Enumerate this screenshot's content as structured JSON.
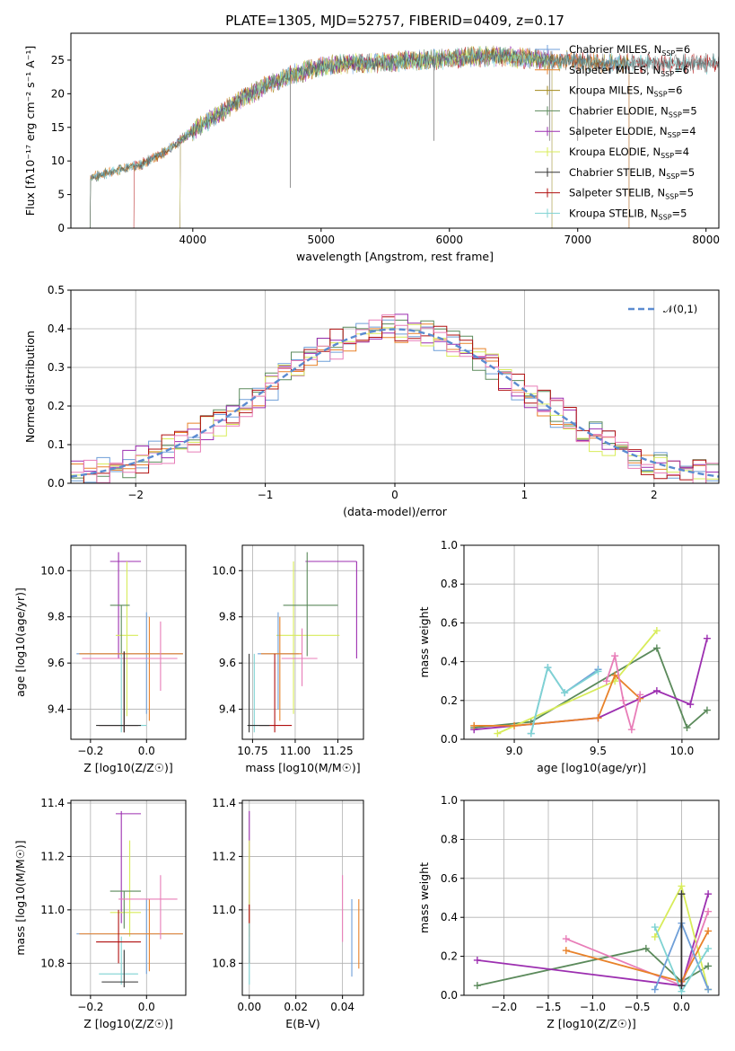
{
  "page_title": "PLATE=1305, MJD=52757, FIBERID=0409, z=0.17",
  "colors": {
    "Chabrier MILES": "#6f9fd8",
    "Salpeter MILES": "#e8822a",
    "Kroupa MILES": "#a38a1b",
    "Chabrier ELODIE": "#5b8a5b",
    "Salpeter ELODIE": "#9c2fb0",
    "Kroupa ELODIE": "#d8ec5a",
    "Chabrier STELIB": "#333333",
    "Salpeter STELIB": "#b01010",
    "Kroupa STELIB": "#7fd3d3",
    "gauss": "#5b8bd0",
    "pink": "#e87db8"
  },
  "chart_data": [
    {
      "id": "spectrum",
      "type": "line",
      "xlabel": "wavelength [Angstrom, rest frame]",
      "ylabel": "Flux [fλ10⁻¹⁷ erg cm⁻² s⁻¹ A⁻¹]",
      "xlim": [
        3050,
        8100
      ],
      "ylim": [
        0,
        29
      ],
      "xticks": [
        4000,
        5000,
        6000,
        7000,
        8000
      ],
      "yticks": [
        0,
        5,
        10,
        15,
        20,
        25
      ],
      "legend_position": "right",
      "legend": [
        {
          "base": "Chabrier MILES, N",
          "sub": "SSP",
          "suffix": "=6"
        },
        {
          "base": "Salpeter MILES, N",
          "sub": "SSP",
          "suffix": "=6"
        },
        {
          "base": "Kroupa MILES, N",
          "sub": "SSP",
          "suffix": "=6"
        },
        {
          "base": "Chabrier ELODIE, N",
          "sub": "SSP",
          "suffix": "=5"
        },
        {
          "base": "Salpeter ELODIE, N",
          "sub": "SSP",
          "suffix": "=4"
        },
        {
          "base": "Kroupa ELODIE, N",
          "sub": "SSP",
          "suffix": "=4"
        },
        {
          "base": "Chabrier STELIB, N",
          "sub": "SSP",
          "suffix": "=5"
        },
        {
          "base": "Salpeter STELIB, N",
          "sub": "SSP",
          "suffix": "=5"
        },
        {
          "base": "Kroupa STELIB, N",
          "sub": "SSP",
          "suffix": "=5"
        }
      ],
      "continuum_x": [
        3200,
        3400,
        3600,
        3800,
        4000,
        4200,
        4400,
        4600,
        4800,
        5000,
        5200,
        5400,
        5600,
        5800,
        6000,
        6200,
        6400,
        6600,
        6800,
        7000,
        7200,
        7400
      ],
      "continuum_y": [
        7.5,
        8.5,
        9.5,
        11.5,
        14.5,
        17,
        19.5,
        21.5,
        23,
        24,
        24.5,
        24.5,
        24.8,
        25,
        25.2,
        25.5,
        25.6,
        25.3,
        25,
        24.8,
        24.5,
        24.5
      ]
    },
    {
      "id": "residuals",
      "type": "step",
      "xlabel": "(data-model)/error",
      "ylabel": "Normed distribution",
      "xlim": [
        -2.5,
        2.5
      ],
      "ylim": [
        0,
        0.5
      ],
      "xticks": [
        -2,
        -1,
        0,
        1,
        2
      ],
      "yticks": [
        0.0,
        0.1,
        0.2,
        0.3,
        0.4,
        0.5
      ],
      "gaussian_label": "𝒩(0,1)",
      "legend_position": "upper right"
    },
    {
      "id": "age_vs_Z",
      "type": "errorbar",
      "xlabel": "Z [log10(Z/Z☉)]",
      "ylabel": "age  [log10(age/yr)]",
      "xlim": [
        -0.27,
        0.14
      ],
      "ylim": [
        9.27,
        10.11
      ],
      "xticks": [
        -0.2,
        0.0
      ],
      "yticks": [
        9.4,
        9.6,
        9.8,
        10.0
      ],
      "points": [
        {
          "s": "Salpeter ELODIE",
          "x": -0.1,
          "y": 10.04,
          "xe": [
            -0.13,
            -0.02
          ],
          "ye": [
            9.62,
            10.08
          ]
        },
        {
          "s": "Kroupa ELODIE",
          "x": -0.07,
          "y": 9.72,
          "xe": [
            -0.11,
            -0.03
          ],
          "ye": [
            9.37,
            10.04
          ]
        },
        {
          "s": "Chabrier ELODIE",
          "x": -0.09,
          "y": 9.85,
          "xe": [
            -0.13,
            -0.06
          ],
          "ye": [
            9.63,
            9.85
          ]
        },
        {
          "s": "Chabrier MILES",
          "x": 0.0,
          "y": 9.64,
          "xe": [
            -0.25,
            0.13
          ],
          "ye": [
            9.38,
            9.82
          ]
        },
        {
          "s": "Salpeter MILES",
          "x": 0.01,
          "y": 9.64,
          "xe": [
            -0.24,
            0.13
          ],
          "ye": [
            9.35,
            9.8
          ]
        },
        {
          "s": "pink",
          "x": 0.05,
          "y": 9.62,
          "xe": [
            -0.23,
            0.11
          ],
          "ye": [
            9.48,
            9.78
          ]
        },
        {
          "s": "Kroupa STELIB",
          "x": -0.09,
          "y": 9.33,
          "xe": [
            -0.17,
            0.0
          ],
          "ye": [
            9.3,
            9.64
          ]
        },
        {
          "s": "Salpeter STELIB",
          "x": -0.08,
          "y": 9.33,
          "xe": [
            -0.17,
            -0.03
          ],
          "ye": [
            9.3,
            9.65
          ]
        },
        {
          "s": "Chabrier STELIB",
          "x": -0.08,
          "y": 9.33,
          "xe": [
            -0.18,
            -0.02
          ],
          "ye": [
            9.3,
            9.65
          ]
        }
      ]
    },
    {
      "id": "age_vs_mass",
      "type": "errorbar",
      "xlabel": "mass [log10(M/M☉)]",
      "ylabel": "",
      "xlim": [
        10.69,
        11.4
      ],
      "ylim": [
        9.27,
        10.11
      ],
      "xticks": [
        10.75,
        11.0,
        11.25
      ],
      "yticks": [
        9.4,
        9.6,
        9.8,
        10.0
      ],
      "points": [
        {
          "s": "Salpeter ELODIE",
          "x": 11.36,
          "y": 10.04,
          "xe": [
            11.06,
            11.36
          ],
          "ye": [
            9.62,
            10.04
          ]
        },
        {
          "s": "Kroupa ELODIE",
          "x": 10.99,
          "y": 9.72,
          "xe": [
            10.89,
            11.26
          ],
          "ye": [
            9.38,
            10.04
          ]
        },
        {
          "s": "Chabrier ELODIE",
          "x": 11.07,
          "y": 9.85,
          "xe": [
            10.93,
            11.25
          ],
          "ye": [
            9.63,
            10.08
          ]
        },
        {
          "s": "Chabrier MILES",
          "x": 10.9,
          "y": 9.64,
          "xe": [
            10.78,
            11.02
          ],
          "ye": [
            9.4,
            9.82
          ]
        },
        {
          "s": "Salpeter MILES",
          "x": 10.91,
          "y": 9.64,
          "xe": [
            10.8,
            11.04
          ],
          "ye": [
            9.35,
            9.8
          ]
        },
        {
          "s": "pink",
          "x": 11.04,
          "y": 9.62,
          "xe": [
            10.92,
            11.13
          ],
          "ye": [
            9.5,
            9.75
          ]
        },
        {
          "s": "Kroupa STELIB",
          "x": 10.76,
          "y": 9.33,
          "xe": [
            10.73,
            10.88
          ],
          "ye": [
            9.3,
            9.64
          ]
        },
        {
          "s": "Salpeter STELIB",
          "x": 10.88,
          "y": 9.33,
          "xe": [
            10.79,
            10.98
          ],
          "ye": [
            9.3,
            9.64
          ]
        },
        {
          "s": "Chabrier STELIB",
          "x": 10.73,
          "y": 9.33,
          "xe": [
            10.72,
            10.85
          ],
          "ye": [
            9.3,
            9.64
          ]
        }
      ]
    },
    {
      "id": "mass_weight_vs_age",
      "type": "line",
      "xlabel": "age  [log10(age/yr)]",
      "ylabel": "mass weight",
      "xlim": [
        8.7,
        10.22
      ],
      "ylim": [
        0.0,
        1.0
      ],
      "xticks": [
        9.0,
        9.5,
        10.0
      ],
      "yticks": [
        0.0,
        0.2,
        0.4,
        0.6,
        0.8,
        1.0
      ],
      "series": [
        {
          "s": "Chabrier ELODIE",
          "x": [
            8.76,
            9.1,
            9.85,
            10.03,
            10.15
          ],
          "y": [
            0.06,
            0.09,
            0.47,
            0.06,
            0.15
          ]
        },
        {
          "s": "Salpeter ELODIE",
          "x": [
            8.76,
            9.5,
            9.85,
            10.05,
            10.15
          ],
          "y": [
            0.05,
            0.11,
            0.25,
            0.18,
            0.52
          ]
        },
        {
          "s": "Kroupa ELODIE",
          "x": [
            8.9,
            9.6,
            9.85
          ],
          "y": [
            0.03,
            0.3,
            0.56
          ]
        },
        {
          "s": "Salpeter MILES",
          "x": [
            8.76,
            9.0,
            9.5,
            9.6,
            9.75
          ],
          "y": [
            0.07,
            0.07,
            0.11,
            0.33,
            0.21
          ]
        },
        {
          "s": "Chabrier MILES",
          "x": [
            9.1,
            9.2,
            9.3,
            9.5
          ],
          "y": [
            0.03,
            0.37,
            0.24,
            0.36
          ]
        },
        {
          "s": "Kroupa STELIB",
          "x": [
            9.1,
            9.2,
            9.3,
            9.5
          ],
          "y": [
            0.03,
            0.37,
            0.24,
            0.35
          ]
        },
        {
          "s": "pink",
          "x": [
            9.55,
            9.6,
            9.65,
            9.7,
            9.75
          ],
          "y": [
            0.3,
            0.43,
            0.2,
            0.05,
            0.23
          ]
        }
      ]
    },
    {
      "id": "mass_vs_Z",
      "type": "errorbar",
      "xlabel": "Z [log10(Z/Z☉)]",
      "ylabel": "mass [log10(M/M☉)]",
      "xlim": [
        -0.27,
        0.14
      ],
      "ylim": [
        10.68,
        11.41
      ],
      "xticks": [
        -0.2,
        0.0
      ],
      "yticks": [
        10.8,
        11.0,
        11.2,
        11.4
      ],
      "points": [
        {
          "s": "Salpeter ELODIE",
          "x": -0.09,
          "y": 11.36,
          "xe": [
            -0.11,
            -0.02
          ],
          "ye": [
            10.95,
            11.37
          ]
        },
        {
          "s": "Kroupa ELODIE",
          "x": -0.06,
          "y": 10.99,
          "xe": [
            -0.13,
            -0.02
          ],
          "ye": [
            10.9,
            11.26
          ]
        },
        {
          "s": "Chabrier ELODIE",
          "x": -0.08,
          "y": 11.07,
          "xe": [
            -0.13,
            -0.02
          ],
          "ye": [
            10.93,
            11.07
          ]
        },
        {
          "s": "Chabrier MILES",
          "x": 0.0,
          "y": 10.91,
          "xe": [
            -0.25,
            0.13
          ],
          "ye": [
            10.76,
            11.04
          ]
        },
        {
          "s": "Salpeter MILES",
          "x": 0.01,
          "y": 10.91,
          "xe": [
            -0.24,
            0.13
          ],
          "ye": [
            10.77,
            11.04
          ]
        },
        {
          "s": "pink",
          "x": 0.05,
          "y": 11.04,
          "xe": [
            -0.1,
            0.11
          ],
          "ye": [
            10.89,
            11.13
          ]
        },
        {
          "s": "Kroupa STELIB",
          "x": -0.09,
          "y": 10.76,
          "xe": [
            -0.17,
            -0.03
          ],
          "ye": [
            10.72,
            10.9
          ]
        },
        {
          "s": "Salpeter STELIB",
          "x": -0.1,
          "y": 10.88,
          "xe": [
            -0.18,
            -0.02
          ],
          "ye": [
            10.8,
            11.0
          ]
        },
        {
          "s": "Chabrier STELIB",
          "x": -0.08,
          "y": 10.73,
          "xe": [
            -0.16,
            -0.03
          ],
          "ye": [
            10.71,
            10.85
          ]
        }
      ]
    },
    {
      "id": "mass_vs_ebv",
      "type": "errorbar",
      "xlabel": "E(B-V)",
      "ylabel": "",
      "xlim": [
        -0.003,
        0.049
      ],
      "ylim": [
        10.68,
        11.41
      ],
      "xticks": [
        0.0,
        0.02,
        0.04
      ],
      "yticks": [
        10.8,
        11.0,
        11.2,
        11.4
      ],
      "points": [
        {
          "s": "Salpeter ELODIE",
          "x": 0.0,
          "y": 11.36,
          "xe": [
            0.0,
            0.0
          ],
          "ye": [
            10.95,
            11.37
          ]
        },
        {
          "s": "Kroupa ELODIE",
          "x": 0.0,
          "y": 10.99,
          "xe": [
            0.0,
            0.0
          ],
          "ye": [
            10.9,
            11.26
          ]
        },
        {
          "s": "Salpeter STELIB",
          "x": 0.0,
          "y": 10.88,
          "xe": [
            0.0,
            0.0
          ],
          "ye": [
            10.8,
            11.02
          ]
        },
        {
          "s": "Kroupa STELIB",
          "x": 0.0,
          "y": 10.76,
          "xe": [
            0.0,
            0.0
          ],
          "ye": [
            10.72,
            10.95
          ]
        },
        {
          "s": "pink",
          "x": 0.04,
          "y": 11.04,
          "xe": [
            0.04,
            0.04
          ],
          "ye": [
            10.88,
            11.13
          ]
        },
        {
          "s": "Chabrier MILES",
          "x": 0.044,
          "y": 10.91,
          "xe": [
            0.044,
            0.044
          ],
          "ye": [
            10.75,
            11.04
          ]
        },
        {
          "s": "Salpeter MILES",
          "x": 0.047,
          "y": 10.91,
          "xe": [
            0.047,
            0.047
          ],
          "ye": [
            10.78,
            11.04
          ]
        }
      ]
    },
    {
      "id": "mass_weight_vs_Z",
      "type": "line",
      "xlabel": "Z [log10(Z/Z☉)]",
      "ylabel": "mass weight",
      "xlim": [
        -2.45,
        0.42
      ],
      "ylim": [
        0.0,
        1.0
      ],
      "xticks": [
        -2.0,
        -1.5,
        -1.0,
        -0.5,
        0.0
      ],
      "yticks": [
        0.0,
        0.2,
        0.4,
        0.6,
        0.8,
        1.0
      ],
      "series": [
        {
          "s": "Chabrier ELODIE",
          "x": [
            -2.3,
            -0.4,
            0.0,
            0.3
          ],
          "y": [
            0.05,
            0.24,
            0.07,
            0.15
          ]
        },
        {
          "s": "Salpeter ELODIE",
          "x": [
            -2.3,
            0.0,
            0.3
          ],
          "y": [
            0.18,
            0.05,
            0.52
          ]
        },
        {
          "s": "Kroupa ELODIE",
          "x": [
            -0.3,
            0.0,
            0.3
          ],
          "y": [
            0.3,
            0.56,
            0.03
          ]
        },
        {
          "s": "pink",
          "x": [
            -1.3,
            0.0,
            0.3
          ],
          "y": [
            0.29,
            0.05,
            0.43
          ]
        },
        {
          "s": "Salpeter MILES",
          "x": [
            -1.3,
            0.0,
            0.3
          ],
          "y": [
            0.23,
            0.07,
            0.33
          ]
        },
        {
          "s": "Chabrier MILES",
          "x": [
            -0.3,
            0.0,
            0.3
          ],
          "y": [
            0.03,
            0.37,
            0.03
          ]
        },
        {
          "s": "Kroupa STELIB",
          "x": [
            -0.3,
            0.0,
            0.3
          ],
          "y": [
            0.35,
            0.02,
            0.24
          ]
        },
        {
          "s": "Chabrier STELIB",
          "x": [
            0.0,
            0.0
          ],
          "y": [
            0.52,
            0.05
          ]
        }
      ]
    }
  ]
}
